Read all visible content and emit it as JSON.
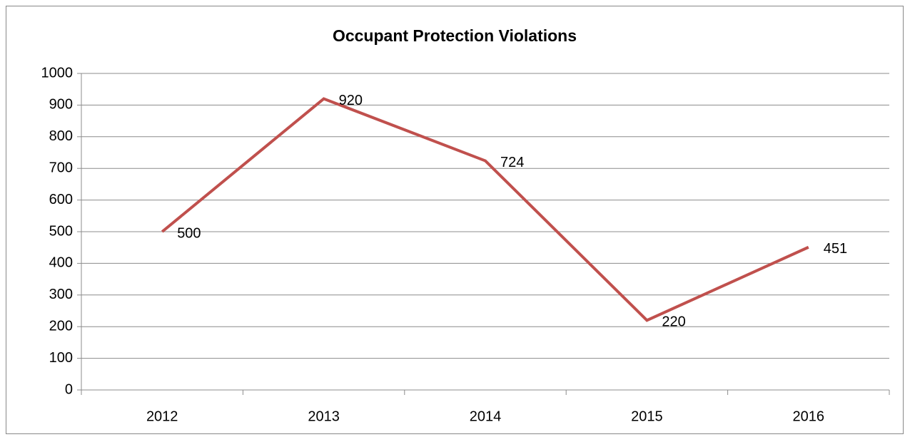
{
  "chart_data": {
    "type": "line",
    "title": "Occupant Protection Violations",
    "categories": [
      "2012",
      "2013",
      "2014",
      "2015",
      "2016"
    ],
    "series": [
      {
        "name": "Occupant Protection Violations",
        "color": "#c0504d",
        "values": [
          500,
          920,
          724,
          220,
          451
        ]
      }
    ],
    "ylim": [
      0,
      1000
    ],
    "yticks": [
      0,
      100,
      200,
      300,
      400,
      500,
      600,
      700,
      800,
      900,
      1000
    ],
    "grid": true
  }
}
